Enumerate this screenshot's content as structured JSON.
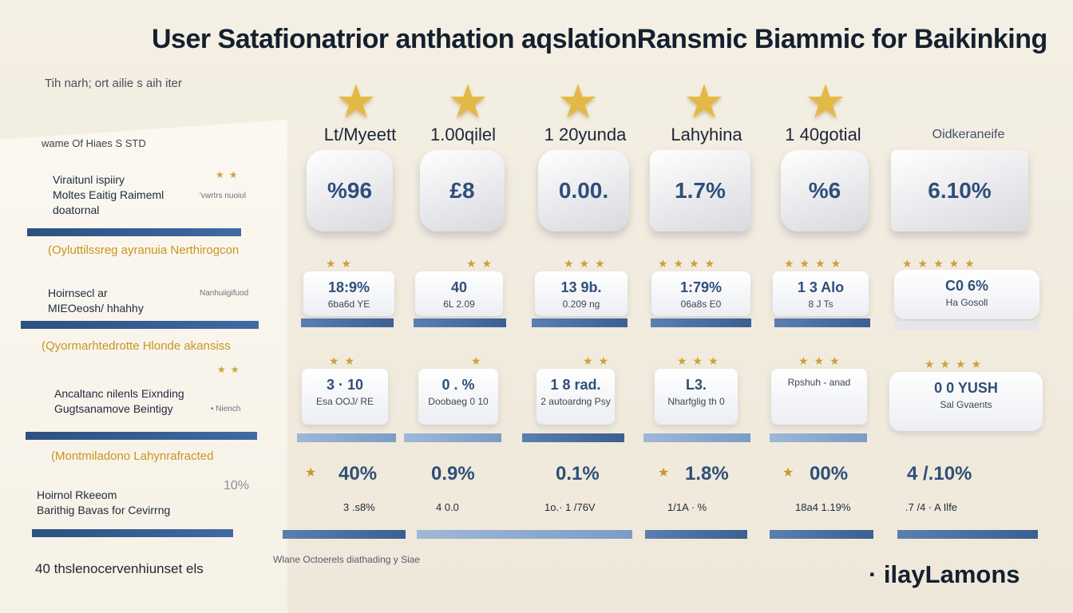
{
  "title": "User Satafionatrior anthation aqslationRansmic Biammic for Baikinking",
  "subtitle": "Tih narh; ort ailie s aih iter",
  "panel_heading": "wame Of Hiaes S STD",
  "sidebar": [
    {
      "highlight": "",
      "text": "Viraitunl ispiiry\nMoltes Eaitig Raimeml\ndoatornal",
      "note": "'vwrtrs nuoiul",
      "stars": "★★"
    },
    {
      "highlight": "(Oyluttilssreg ayranuia Nerthirogcon",
      "text": "Hoirnsecl ar\nMIEOeosh/ hhahhy",
      "note": "Nanhuiigifuod",
      "stars": ""
    },
    {
      "highlight": "(Qyormarhtedrotte Hlonde akansiss",
      "text": "Ancaltanc nilenls Eixnding\nGugtsanamove Beintigy",
      "note": "• Niench",
      "stars": "★★"
    },
    {
      "highlight": "(Montmiladono Lahynrafracted",
      "text": "Hoirnol Rkeeom\nBarithig Bavas for Cevirrng",
      "note": "10%",
      "stars": ""
    }
  ],
  "columns": [
    {
      "header": "Lt/Myeett",
      "shield": "%96"
    },
    {
      "header": "1.00qilel",
      "shield": "£8"
    },
    {
      "header": "1 20yunda",
      "shield": "0.00."
    },
    {
      "header": "Lahyhina",
      "shield": "1.7%"
    },
    {
      "header": "1 40gotial",
      "shield": "%6"
    },
    {
      "header": "Oidkeraneife",
      "shield": "6.10%"
    }
  ],
  "row2": [
    {
      "v1": "18:9%",
      "v2": "6ba6d YE"
    },
    {
      "v1": "40",
      "v2": "6L 2.09"
    },
    {
      "v1": "13 9b.",
      "v2": "0.209 ng"
    },
    {
      "v1": "1:79%",
      "v2": "06a8s E0"
    },
    {
      "v1": "1 3 Alo",
      "v2": "8 J Ts"
    },
    {
      "v1": "C0 6%",
      "v2": "Ha Gosoll"
    }
  ],
  "row3": [
    {
      "v1": "3 · 10",
      "v2": "Esa OOJ/ RE"
    },
    {
      "v1": "0 . %",
      "v2": "Doobaeg 0 10"
    },
    {
      "v1": "1 8 rad.",
      "v2": "2 autoardng Psy"
    },
    {
      "v1": "L3.",
      "v2": "Nharfglig th 0"
    },
    {
      "v1": "",
      "v2": "Rpshuh - anad"
    },
    {
      "v1": "0 0 YUSH",
      "v2": "Sal Gvaents"
    }
  ],
  "row4": [
    {
      "value": "40%",
      "sub": "3 .s8%"
    },
    {
      "value": "0.9%",
      "sub": "4 0.0"
    },
    {
      "value": "0.1%",
      "sub": "1o.· 1 /76V"
    },
    {
      "value": "1.8%",
      "sub": "1/1A · %"
    },
    {
      "value": "00%",
      "sub": "18a4 1.19%"
    },
    {
      "value": "4 /.10%",
      "sub": ".7 /4 · A Ilfe"
    }
  ],
  "footer": {
    "left": "40 thslenocervenhiunset els",
    "middle": "Wlane Octoerels diathading y Siae",
    "brand": "· ilayLamons"
  }
}
